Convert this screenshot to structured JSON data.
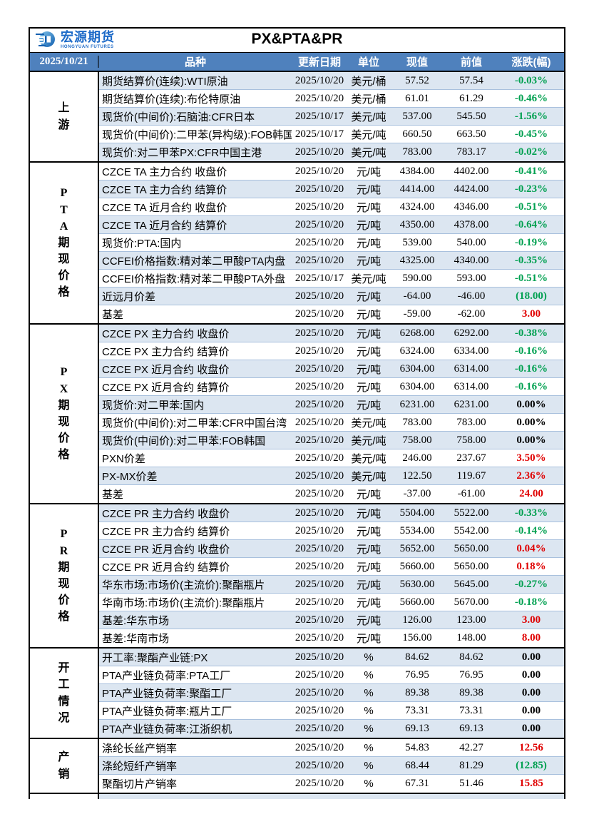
{
  "report": {
    "brand_name": "宏源期货",
    "brand_sub": "HONGYUAN FUTURES",
    "title": "PX&PTA&PR",
    "date": "2025/10/21"
  },
  "columns": {
    "variety": "品种",
    "update_date": "更新日期",
    "unit": "单位",
    "current": "现值",
    "previous": "前值",
    "change": "涨跌(幅)"
  },
  "colors": {
    "header_bg": "#4f81bd",
    "row_alt_bg": "#dce6f1",
    "up_red": "#e00000",
    "down_green": "#00a050",
    "flat_black": "#000000",
    "brand_blue": "#1e6bc8"
  },
  "sections": [
    {
      "label": "上游",
      "rows": [
        {
          "variety": "期货结算价(连续):WTI原油",
          "date": "2025/10/20",
          "unit": "美元/桶",
          "current": "57.52",
          "previous": "57.54",
          "change": "-0.03%",
          "trend": "down"
        },
        {
          "variety": "期货结算价(连续):布伦特原油",
          "date": "2025/10/20",
          "unit": "美元/桶",
          "current": "61.01",
          "previous": "61.29",
          "change": "-0.46%",
          "trend": "down"
        },
        {
          "variety": "现货价(中间价):石脑油:CFR日本",
          "date": "2025/10/17",
          "unit": "美元/吨",
          "current": "537.00",
          "previous": "545.50",
          "change": "-1.56%",
          "trend": "down"
        },
        {
          "variety": "现货价(中间价):二甲苯(异构级):FOB韩国",
          "date": "2025/10/17",
          "unit": "美元/吨",
          "current": "660.50",
          "previous": "663.50",
          "change": "-0.45%",
          "trend": "down"
        },
        {
          "variety": "现货价:对二甲苯PX:CFR中国主港",
          "date": "2025/10/20",
          "unit": "美元/吨",
          "current": "783.00",
          "previous": "783.17",
          "change": "-0.02%",
          "trend": "down"
        }
      ]
    },
    {
      "label": "PTA期现价格",
      "rows": [
        {
          "variety": "CZCE TA 主力合约 收盘价",
          "date": "2025/10/20",
          "unit": "元/吨",
          "current": "4384.00",
          "previous": "4402.00",
          "change": "-0.41%",
          "trend": "down"
        },
        {
          "variety": "CZCE TA 主力合约 结算价",
          "date": "2025/10/20",
          "unit": "元/吨",
          "current": "4414.00",
          "previous": "4424.00",
          "change": "-0.23%",
          "trend": "down"
        },
        {
          "variety": "CZCE TA 近月合约 收盘价",
          "date": "2025/10/20",
          "unit": "元/吨",
          "current": "4324.00",
          "previous": "4346.00",
          "change": "-0.51%",
          "trend": "down"
        },
        {
          "variety": "CZCE TA 近月合约 结算价",
          "date": "2025/10/20",
          "unit": "元/吨",
          "current": "4350.00",
          "previous": "4378.00",
          "change": "-0.64%",
          "trend": "down"
        },
        {
          "variety": "现货价:PTA:国内",
          "date": "2025/10/20",
          "unit": "元/吨",
          "current": "539.00",
          "previous": "540.00",
          "change": "-0.19%",
          "trend": "down"
        },
        {
          "variety": "CCFEI价格指数:精对苯二甲酸PTA内盘",
          "date": "2025/10/20",
          "unit": "元/吨",
          "current": "4325.00",
          "previous": "4340.00",
          "change": "-0.35%",
          "trend": "down"
        },
        {
          "variety": "CCFEI价格指数:精对苯二甲酸PTA外盘",
          "date": "2025/10/17",
          "unit": "美元/吨",
          "current": "590.00",
          "previous": "593.00",
          "change": "-0.51%",
          "trend": "down"
        },
        {
          "variety": "近远月价差",
          "date": "2025/10/20",
          "unit": "元/吨",
          "current": "-64.00",
          "previous": "-46.00",
          "change": "(18.00)",
          "trend": "down"
        },
        {
          "variety": "基差",
          "date": "2025/10/20",
          "unit": "元/吨",
          "current": "-59.00",
          "previous": "-62.00",
          "change": "3.00",
          "trend": "up"
        }
      ]
    },
    {
      "label": "PX期现价格",
      "rows": [
        {
          "variety": "CZCE PX 主力合约 收盘价",
          "date": "2025/10/20",
          "unit": "元/吨",
          "current": "6268.00",
          "previous": "6292.00",
          "change": "-0.38%",
          "trend": "down"
        },
        {
          "variety": "CZCE PX 主力合约 结算价",
          "date": "2025/10/20",
          "unit": "元/吨",
          "current": "6324.00",
          "previous": "6334.00",
          "change": "-0.16%",
          "trend": "down"
        },
        {
          "variety": "CZCE PX 近月合约 收盘价",
          "date": "2025/10/20",
          "unit": "元/吨",
          "current": "6304.00",
          "previous": "6314.00",
          "change": "-0.16%",
          "trend": "down"
        },
        {
          "variety": "CZCE PX 近月合约 结算价",
          "date": "2025/10/20",
          "unit": "元/吨",
          "current": "6304.00",
          "previous": "6314.00",
          "change": "-0.16%",
          "trend": "down"
        },
        {
          "variety": "现货价:对二甲苯:国内",
          "date": "2025/10/20",
          "unit": "元/吨",
          "current": "6231.00",
          "previous": "6231.00",
          "change": "0.00%",
          "trend": "flat"
        },
        {
          "variety": "现货价(中间价):对二甲苯:CFR中国台湾",
          "date": "2025/10/20",
          "unit": "美元/吨",
          "current": "783.00",
          "previous": "783.00",
          "change": "0.00%",
          "trend": "flat"
        },
        {
          "variety": "现货价(中间价):对二甲苯:FOB韩国",
          "date": "2025/10/20",
          "unit": "美元/吨",
          "current": "758.00",
          "previous": "758.00",
          "change": "0.00%",
          "trend": "flat"
        },
        {
          "variety": "PXN价差",
          "date": "2025/10/20",
          "unit": "美元/吨",
          "current": "246.00",
          "previous": "237.67",
          "change": "3.50%",
          "trend": "up"
        },
        {
          "variety": "PX-MX价差",
          "date": "2025/10/20",
          "unit": "美元/吨",
          "current": "122.50",
          "previous": "119.67",
          "change": "2.36%",
          "trend": "up"
        },
        {
          "variety": "基差",
          "date": "2025/10/20",
          "unit": "元/吨",
          "current": "-37.00",
          "previous": "-61.00",
          "change": "24.00",
          "trend": "up"
        }
      ]
    },
    {
      "label": "PR期现价格",
      "rows": [
        {
          "variety": "CZCE PR 主力合约 收盘价",
          "date": "2025/10/20",
          "unit": "元/吨",
          "current": "5504.00",
          "previous": "5522.00",
          "change": "-0.33%",
          "trend": "down"
        },
        {
          "variety": "CZCE PR 主力合约 结算价",
          "date": "2025/10/20",
          "unit": "元/吨",
          "current": "5534.00",
          "previous": "5542.00",
          "change": "-0.14%",
          "trend": "down"
        },
        {
          "variety": "CZCE PR 近月合约 收盘价",
          "date": "2025/10/20",
          "unit": "元/吨",
          "current": "5652.00",
          "previous": "5650.00",
          "change": "0.04%",
          "trend": "up"
        },
        {
          "variety": "CZCE PR 近月合约 结算价",
          "date": "2025/10/20",
          "unit": "元/吨",
          "current": "5660.00",
          "previous": "5650.00",
          "change": "0.18%",
          "trend": "up"
        },
        {
          "variety": "华东市场:市场价(主流价):聚酯瓶片",
          "date": "2025/10/20",
          "unit": "元/吨",
          "current": "5630.00",
          "previous": "5645.00",
          "change": "-0.27%",
          "trend": "down"
        },
        {
          "variety": "华南市场:市场价(主流价):聚酯瓶片",
          "date": "2025/10/20",
          "unit": "元/吨",
          "current": "5660.00",
          "previous": "5670.00",
          "change": "-0.18%",
          "trend": "down"
        },
        {
          "variety": "基差:华东市场",
          "date": "2025/10/20",
          "unit": "元/吨",
          "current": "126.00",
          "previous": "123.00",
          "change": "3.00",
          "trend": "up"
        },
        {
          "variety": "基差:华南市场",
          "date": "2025/10/20",
          "unit": "元/吨",
          "current": "156.00",
          "previous": "148.00",
          "change": "8.00",
          "trend": "up"
        }
      ]
    },
    {
      "label": "开工情况",
      "rows": [
        {
          "variety": "开工率:聚酯产业链:PX",
          "date": "2025/10/20",
          "unit": "%",
          "current": "84.62",
          "previous": "84.62",
          "change": "0.00",
          "trend": "flat"
        },
        {
          "variety": "PTA产业链负荷率:PTA工厂",
          "date": "2025/10/20",
          "unit": "%",
          "current": "76.95",
          "previous": "76.95",
          "change": "0.00",
          "trend": "flat"
        },
        {
          "variety": "PTA产业链负荷率:聚酯工厂",
          "date": "2025/10/20",
          "unit": "%",
          "current": "89.38",
          "previous": "89.38",
          "change": "0.00",
          "trend": "flat"
        },
        {
          "variety": "PTA产业链负荷率:瓶片工厂",
          "date": "2025/10/20",
          "unit": "%",
          "current": "73.31",
          "previous": "73.31",
          "change": "0.00",
          "trend": "flat"
        },
        {
          "variety": "PTA产业链负荷率:江浙织机",
          "date": "2025/10/20",
          "unit": "%",
          "current": "69.13",
          "previous": "69.13",
          "change": "0.00",
          "trend": "flat"
        }
      ]
    },
    {
      "label": "产销",
      "rows": [
        {
          "variety": "涤纶长丝产销率",
          "date": "2025/10/20",
          "unit": "%",
          "current": "54.83",
          "previous": "42.27",
          "change": "12.56",
          "trend": "up"
        },
        {
          "variety": "涤纶短纤产销率",
          "date": "2025/10/20",
          "unit": "%",
          "current": "68.44",
          "previous": "81.29",
          "change": "(12.85)",
          "trend": "down"
        },
        {
          "variety": "聚酯切片产销率",
          "date": "2025/10/20",
          "unit": "%",
          "current": "67.31",
          "previous": "51.46",
          "change": "15.85",
          "trend": "up"
        }
      ]
    }
  ]
}
